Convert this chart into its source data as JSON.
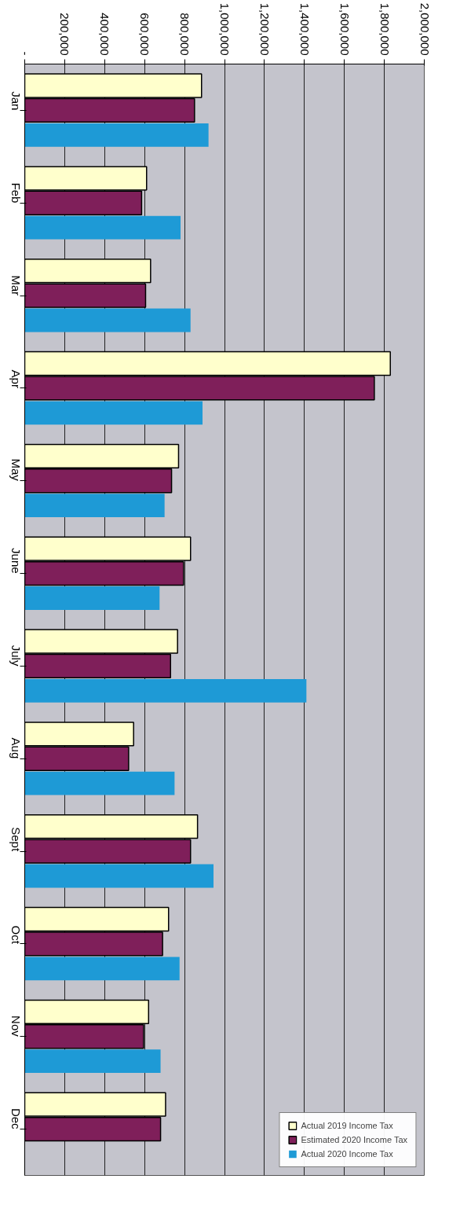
{
  "chart_data": {
    "type": "bar",
    "orientation": "horizontal",
    "categories": [
      "Jan",
      "Feb",
      "Mar",
      "Apr",
      "May",
      "June",
      "July",
      "Aug",
      "Sept",
      "Oct",
      "Nov",
      "Dec"
    ],
    "series": [
      {
        "name": "Actual 2019 Income Tax",
        "color": "#ffffcc",
        "values": [
          885000,
          610000,
          630000,
          1830000,
          770000,
          830000,
          765000,
          545000,
          865000,
          720000,
          620000,
          705000
        ]
      },
      {
        "name": "Estimated 2020 Income Tax",
        "color": "#7f1f5a",
        "values": [
          850000,
          585000,
          605000,
          1750000,
          735000,
          795000,
          730000,
          520000,
          830000,
          690000,
          595000,
          680000
        ]
      },
      {
        "name": "Actual 2020 Income Tax",
        "color": "#1e9ad6",
        "values": [
          920000,
          780000,
          830000,
          890000,
          700000,
          675000,
          1410000,
          750000,
          945000,
          775000,
          680000,
          null
        ]
      }
    ],
    "xlim": [
      0,
      2000000
    ],
    "xticks": [
      {
        "value": 0,
        "label": "-"
      },
      {
        "value": 200000,
        "label": "200,000"
      },
      {
        "value": 400000,
        "label": "400,000"
      },
      {
        "value": 600000,
        "label": "600,000"
      },
      {
        "value": 800000,
        "label": "800,000"
      },
      {
        "value": 1000000,
        "label": "1,000,000"
      },
      {
        "value": 1200000,
        "label": "1,200,000"
      },
      {
        "value": 1400000,
        "label": "1,400,000"
      },
      {
        "value": 1600000,
        "label": "1,600,000"
      },
      {
        "value": 1800000,
        "label": "1,800,000"
      },
      {
        "value": 2000000,
        "label": "2,000,000"
      }
    ],
    "grid": "x",
    "legend": "bottom right"
  }
}
